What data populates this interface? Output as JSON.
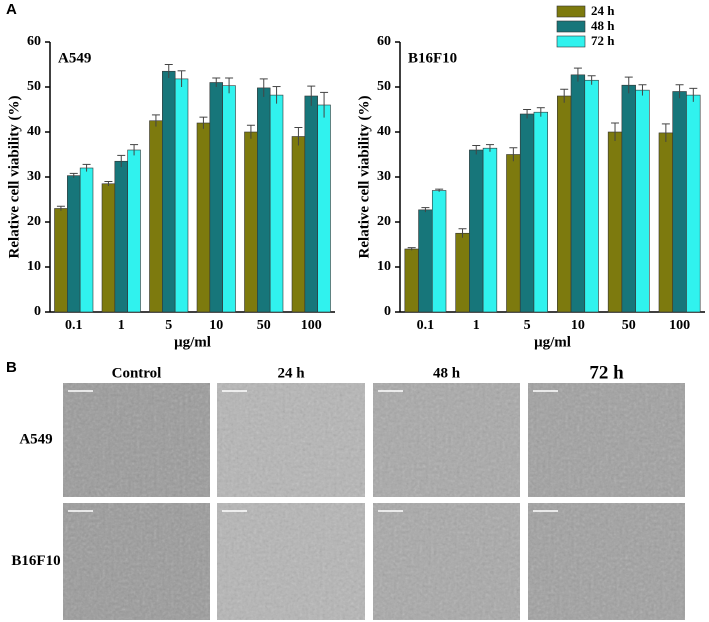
{
  "panel_labels": [
    "A",
    "B"
  ],
  "chart_data": [
    {
      "type": "bar",
      "title": "A549",
      "x_label": "μg/ml",
      "y_label": "Relative cell viability (%)",
      "categories": [
        "0.1",
        "1",
        "5",
        "10",
        "50",
        "100"
      ],
      "series": [
        {
          "name": "24 h",
          "color": "#7d7a0e",
          "values": [
            23,
            28.5,
            42.5,
            42,
            40,
            39
          ],
          "errors": [
            0.5,
            0.5,
            1.3,
            1.3,
            1.5,
            2
          ]
        },
        {
          "name": "48 h",
          "color": "#17767a",
          "values": [
            30.3,
            33.5,
            53.5,
            51,
            49.8,
            48
          ],
          "errors": [
            0.5,
            1.3,
            1.5,
            1,
            2,
            2.2
          ]
        },
        {
          "name": "72 h",
          "color": "#30f2ee",
          "values": [
            32,
            36,
            51.8,
            50.3,
            48.2,
            46
          ],
          "errors": [
            0.8,
            1.2,
            1.8,
            1.7,
            1.9,
            2.8
          ]
        }
      ],
      "ylim": [
        0,
        60
      ],
      "yticks": [
        0,
        10,
        20,
        30,
        40,
        50,
        60
      ]
    },
    {
      "type": "bar",
      "title": "B16F10",
      "x_label": "μg/ml",
      "y_label": "Relative cell viability (%)",
      "categories": [
        "0.1",
        "1",
        "5",
        "10",
        "50",
        "100"
      ],
      "series": [
        {
          "name": "24 h",
          "color": "#7d7a0e",
          "values": [
            14,
            17.5,
            35,
            48,
            40,
            39.8
          ],
          "errors": [
            0.3,
            1,
            1.5,
            1.5,
            2,
            2
          ]
        },
        {
          "name": "48 h",
          "color": "#17767a",
          "values": [
            22.7,
            36,
            44,
            52.7,
            50.4,
            49
          ],
          "errors": [
            0.5,
            1,
            1,
            1.5,
            1.8,
            1.5
          ]
        },
        {
          "name": "72 h",
          "color": "#30f2ee",
          "values": [
            27,
            36.4,
            44.4,
            51.5,
            49.3,
            48.2
          ],
          "errors": [
            0.3,
            0.8,
            1,
            1,
            1.2,
            1.5
          ]
        }
      ],
      "ylim": [
        0,
        60
      ],
      "yticks": [
        0,
        10,
        20,
        30,
        40,
        50,
        60
      ],
      "legend": "top-right"
    }
  ],
  "micrographs": {
    "columns": [
      "Control",
      "24 h",
      "48 h",
      "72 h"
    ],
    "rows": [
      "A549",
      "B16F10"
    ]
  }
}
